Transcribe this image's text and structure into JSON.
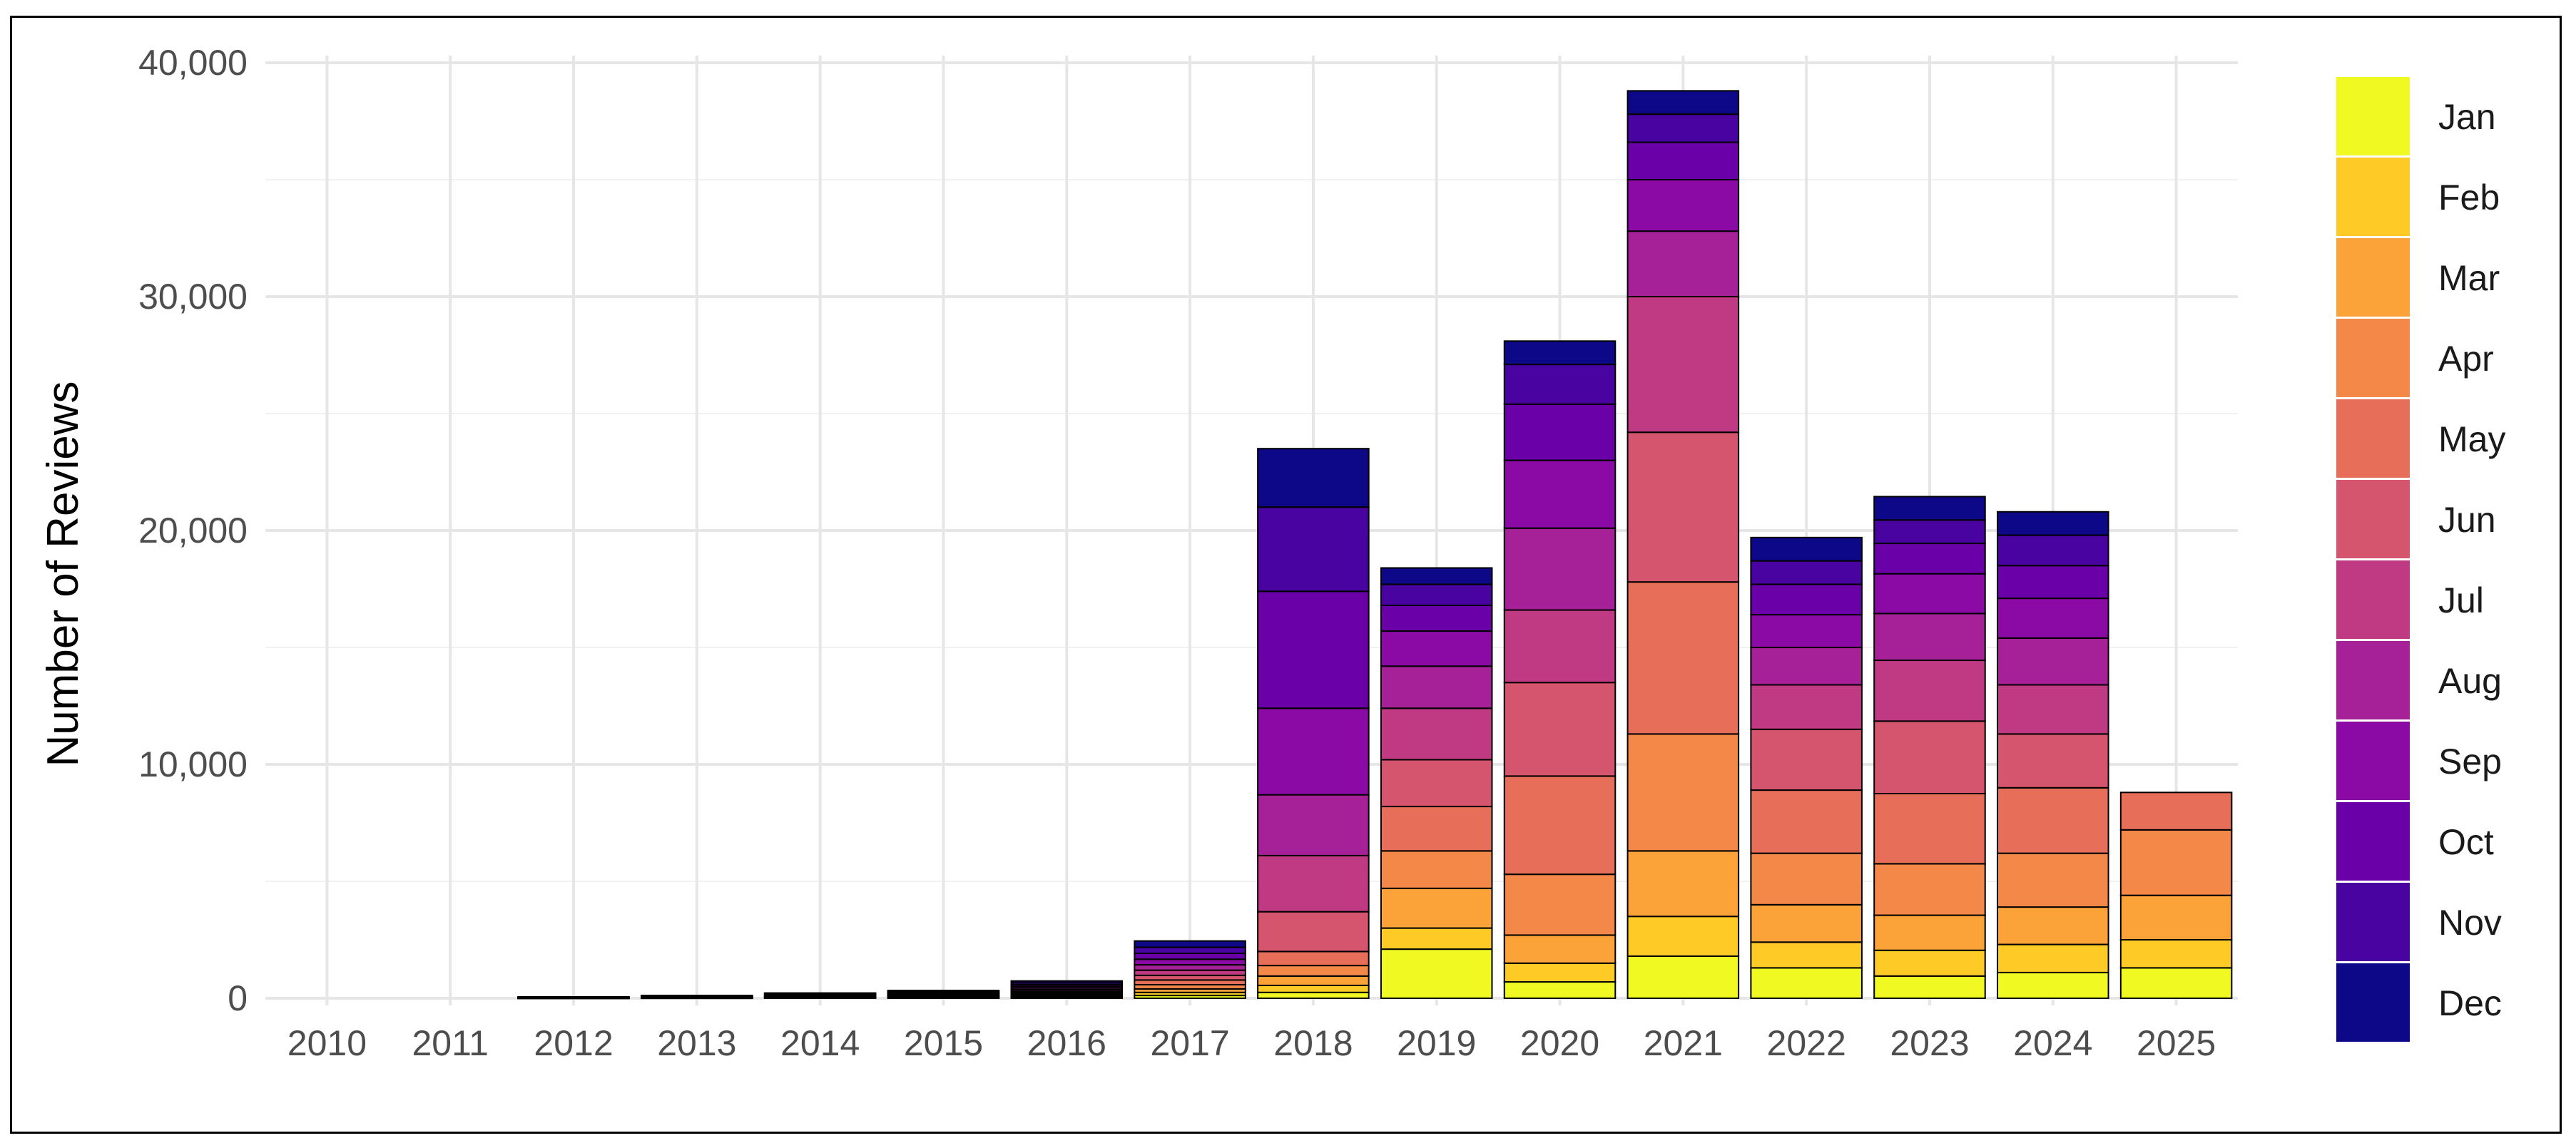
{
  "chart_data": {
    "type": "bar",
    "stacked": true,
    "title": "",
    "xlabel": "",
    "ylabel": "Number of Reviews",
    "ylim": [
      0,
      40000
    ],
    "yticks": [
      0,
      10000,
      20000,
      30000,
      40000
    ],
    "ytick_labels": [
      "0",
      "10,000",
      "20,000",
      "30,000",
      "40,000"
    ],
    "grid": true,
    "legend_position": "right",
    "categories": [
      "2010",
      "2011",
      "2012",
      "2013",
      "2014",
      "2015",
      "2016",
      "2017",
      "2018",
      "2019",
      "2020",
      "2021",
      "2022",
      "2023",
      "2024",
      "2025"
    ],
    "series": [
      {
        "name": "Jan",
        "color": "#f0f921",
        "values": [
          0,
          0,
          5,
          10,
          15,
          20,
          40,
          120,
          250,
          2100,
          700,
          1800,
          1300,
          950,
          1100,
          1300
        ]
      },
      {
        "name": "Feb",
        "color": "#fdca26",
        "values": [
          0,
          0,
          5,
          10,
          15,
          20,
          40,
          130,
          300,
          900,
          800,
          1700,
          1100,
          1100,
          1200,
          1200
        ]
      },
      {
        "name": "Mar",
        "color": "#fba238",
        "values": [
          0,
          0,
          5,
          10,
          15,
          25,
          50,
          150,
          400,
          1700,
          1200,
          2800,
          1600,
          1500,
          1600,
          1900
        ]
      },
      {
        "name": "Apr",
        "color": "#f48849",
        "values": [
          0,
          0,
          5,
          10,
          20,
          25,
          50,
          180,
          450,
          1600,
          2600,
          5000,
          2200,
          2200,
          2300,
          2800
        ]
      },
      {
        "name": "May",
        "color": "#e76f5a",
        "values": [
          0,
          0,
          5,
          10,
          20,
          25,
          60,
          200,
          600,
          1900,
          4200,
          6500,
          2700,
          3000,
          2800,
          1600
        ]
      },
      {
        "name": "Jun",
        "color": "#d5546e",
        "values": [
          0,
          0,
          5,
          10,
          20,
          30,
          60,
          200,
          1700,
          2000,
          4000,
          6400,
          2600,
          3100,
          2300,
          0
        ]
      },
      {
        "name": "Jul",
        "color": "#c03a83",
        "values": [
          0,
          0,
          5,
          10,
          20,
          30,
          70,
          220,
          2400,
          2200,
          3100,
          5800,
          1900,
          2600,
          2100,
          0
        ]
      },
      {
        "name": "Aug",
        "color": "#a62098",
        "values": [
          0,
          0,
          5,
          10,
          20,
          30,
          70,
          230,
          2600,
          1800,
          3500,
          2800,
          1600,
          2000,
          2000,
          0
        ]
      },
      {
        "name": "Sep",
        "color": "#8b0aa5",
        "values": [
          0,
          0,
          5,
          10,
          20,
          30,
          70,
          240,
          3700,
          1500,
          2900,
          2200,
          1400,
          1700,
          1700,
          0
        ]
      },
      {
        "name": "Oct",
        "color": "#6a00a8",
        "values": [
          0,
          0,
          5,
          10,
          20,
          30,
          70,
          250,
          5000,
          1100,
          2400,
          1600,
          1300,
          1300,
          1400,
          0
        ]
      },
      {
        "name": "Nov",
        "color": "#4903a0",
        "values": [
          0,
          0,
          5,
          10,
          20,
          35,
          80,
          260,
          3600,
          900,
          1700,
          1200,
          1000,
          1000,
          1300,
          0
        ]
      },
      {
        "name": "Dec",
        "color": "#0d0887",
        "values": [
          0,
          0,
          5,
          10,
          20,
          35,
          80,
          270,
          2500,
          700,
          1000,
          1000,
          1000,
          1000,
          1000,
          0
        ]
      }
    ]
  }
}
